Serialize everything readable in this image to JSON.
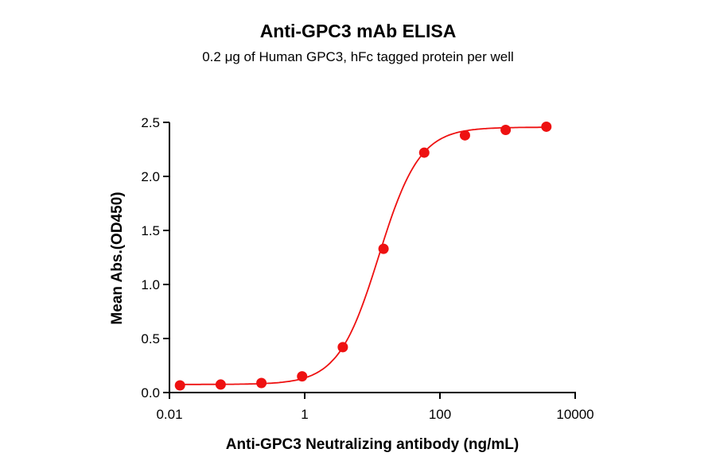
{
  "chart_data": {
    "type": "scatter",
    "title": "Anti-GPC3 mAb ELISA",
    "subtitle": "0.2 μg of Human GPC3, hFc tagged protein per well",
    "xlabel": "Anti-GPC3 Neutralizing antibody (ng/mL)",
    "ylabel": "Mean Abs.(OD450)",
    "x_scale": "log",
    "xlim": [
      0.01,
      10000
    ],
    "ylim": [
      0,
      2.5
    ],
    "x_ticks": [
      "0.01",
      "1",
      "100",
      "10000"
    ],
    "x_tick_values": [
      0.01,
      1,
      100,
      10000
    ],
    "y_ticks": [
      "0.0",
      "0.5",
      "1.0",
      "1.5",
      "2.0",
      "2.5"
    ],
    "y_tick_values": [
      0,
      0.5,
      1.0,
      1.5,
      2.0,
      2.5
    ],
    "grid": false,
    "fit_curve": "4PL sigmoidal",
    "color": "#ee1111",
    "x": [
      0.0143,
      0.0572,
      0.229,
      0.916,
      3.66,
      14.65,
      58.6,
      234.4,
      937.5,
      3750
    ],
    "y": [
      0.066,
      0.074,
      0.088,
      0.15,
      0.42,
      1.33,
      2.22,
      2.38,
      2.43,
      2.46
    ]
  }
}
